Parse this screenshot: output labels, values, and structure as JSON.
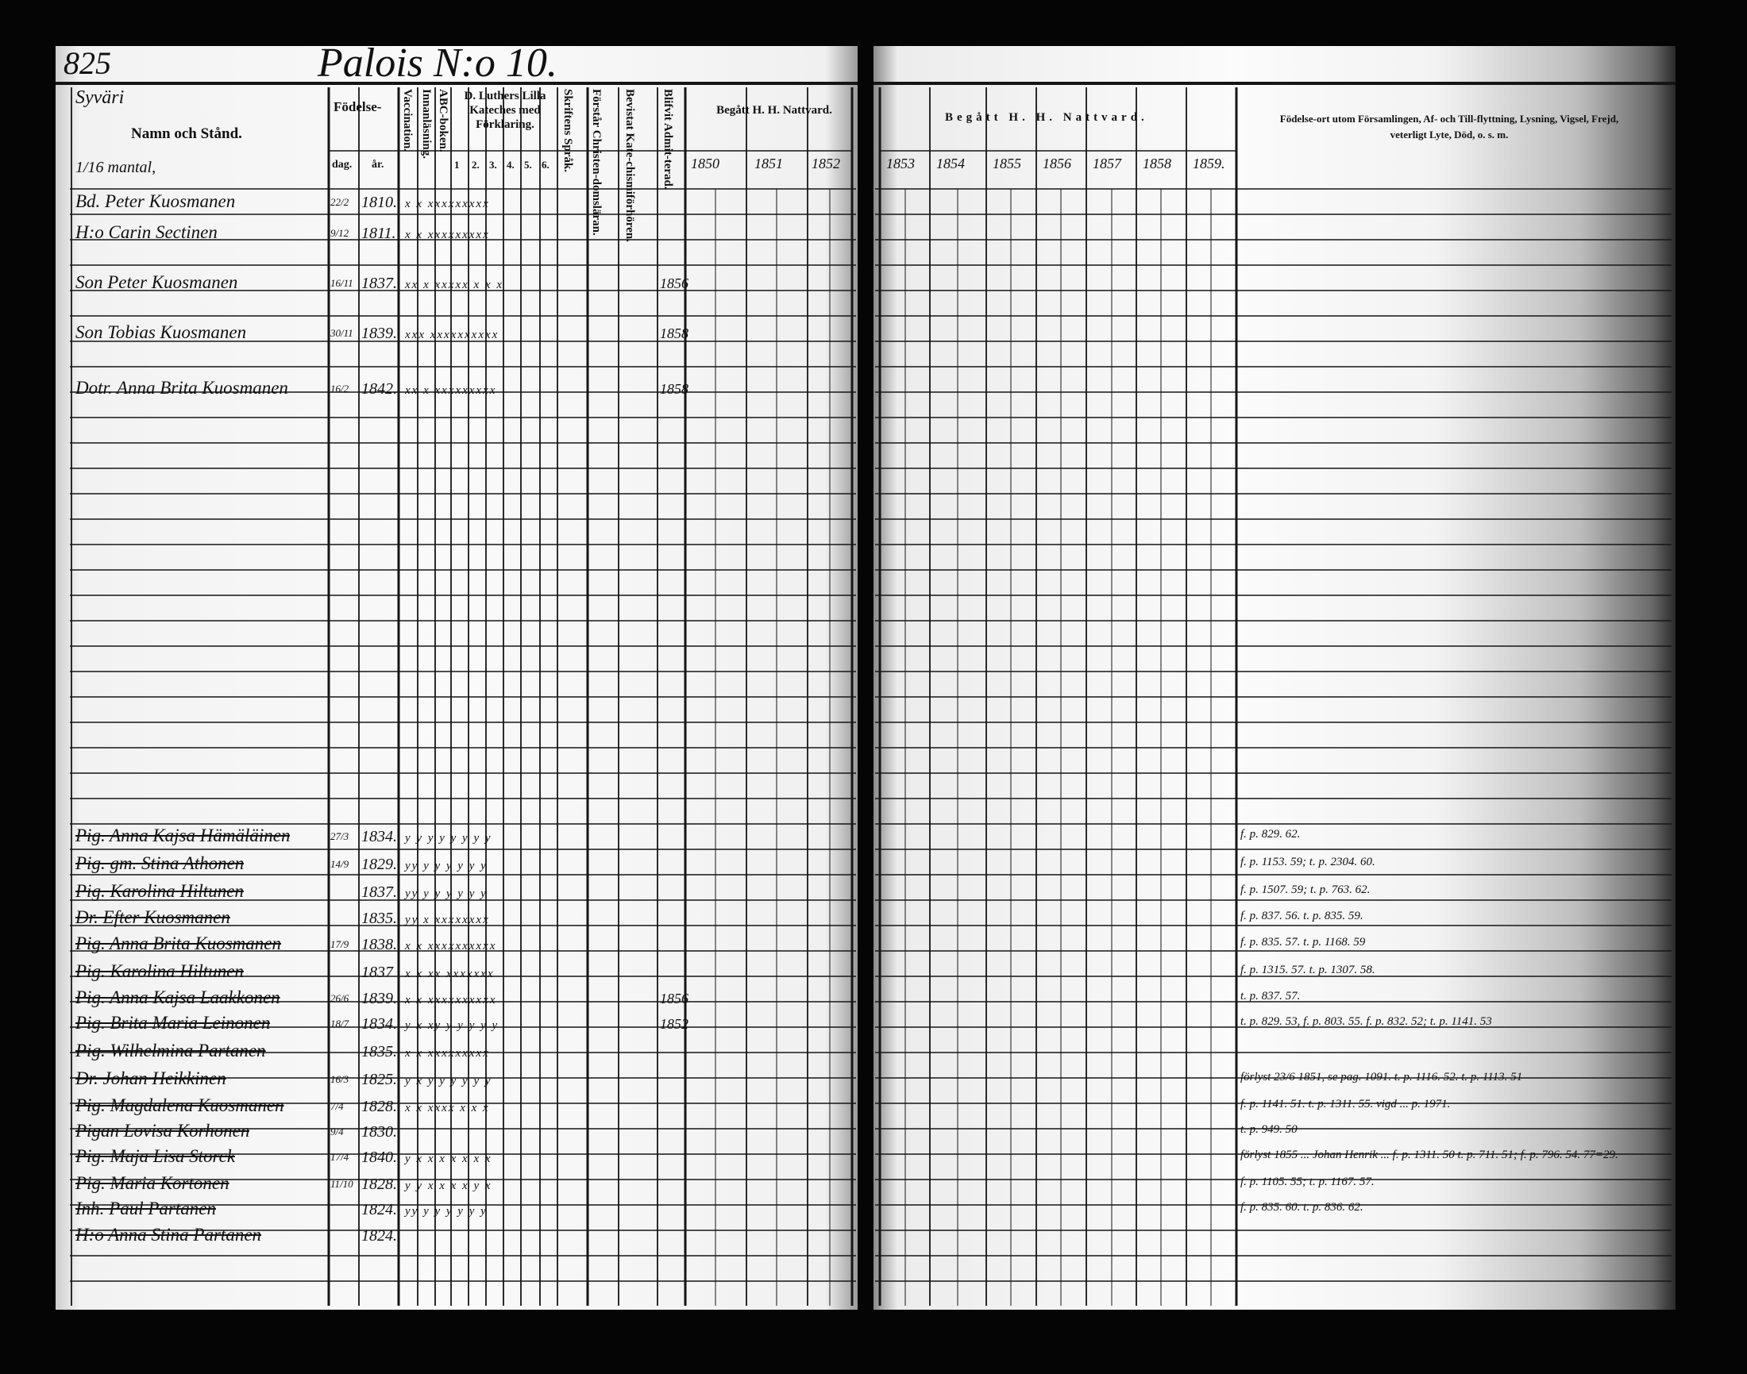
{
  "page_number": "825",
  "title": "Palois N:o 10.",
  "header": {
    "village": "Syväri",
    "mantal": "1/16 mantal,",
    "name_col": "Namn och Stånd.",
    "birth_col": "Födelse-",
    "birth_day": "dag.",
    "birth_year": "år.",
    "vaccination": "Vaccination.",
    "innanlasning": "Innanläsning.",
    "abc": "ABC-boken.",
    "luther": "D. Luthers Lilla Kateches med Förklaring.",
    "luther_parts": [
      "1",
      "2.",
      "3.",
      "4.",
      "5.",
      "6."
    ],
    "skrift": "Skriftens Språk.",
    "forstar": "Förstår Christen-domsläran.",
    "bevistat": "Bevistat Kate-chismiförhören.",
    "blifvit": "Blifvit Admit-terad.",
    "begatt_left": "Begått H. H. Nattvard.",
    "begatt_right": "Begått H. H. Nattvard.",
    "years_left": [
      "1850",
      "1851",
      "1852"
    ],
    "years_right": [
      "1853",
      "1854",
      "1855",
      "1856",
      "1857",
      "1858",
      "1859."
    ],
    "remarks_col": "Födelse-ort utom Församlingen, Af- och Till-flyttning, Lysning, Vigsel, Frejd, veterligt Lyte, Död, o. s. m."
  },
  "entries": [
    {
      "name": "Bd. Peter Kuosmanen",
      "dag": "22/2",
      "ar": "1810.",
      "marks": "x x xxxxxxxxx",
      "admitted": "",
      "struck": false
    },
    {
      "name": "H:o Carin Sectinen",
      "dag": "9/12",
      "ar": "1811.",
      "marks": "x x xxxxxxxxx",
      "admitted": "",
      "struck": false
    },
    {
      "name": "Son Peter Kuosmanen",
      "dag": "16/11",
      "ar": "1837.",
      "marks": "xx x xxxxx x x x",
      "admitted": "1856",
      "struck": false
    },
    {
      "name": "Son Tobias Kuosmanen",
      "dag": "30/11",
      "ar": "1839.",
      "marks": "xxx xxxxxxxxxx",
      "admitted": "1858",
      "struck": false
    },
    {
      "name": "Dotr. Anna Brita Kuosmanen",
      "dag": "16/2",
      "ar": "1842.",
      "marks": "xx x xxxxxxxxx",
      "admitted": "1858",
      "struck": false
    },
    {
      "name": "Pig. Anna Kajsa Hämäläinen",
      "dag": "27/3",
      "ar": "1834.",
      "marks": "y y y y y y y y",
      "admitted": "",
      "struck": true,
      "remark": "f. p. 829. 62."
    },
    {
      "name": "Pig. gm. Stina Athonen",
      "dag": "14/9",
      "ar": "1829.",
      "marks": "yy y y y y y y",
      "admitted": "",
      "struck": true,
      "remark": "f. p. 1153. 59; t. p. 2304. 60."
    },
    {
      "name": "Pig. Karolina Hiltunen",
      "dag": "",
      "ar": "1837.",
      "marks": "yy y y y y y y",
      "admitted": "",
      "struck": true,
      "remark": "f. p. 1507. 59; t. p. 763. 62."
    },
    {
      "name": "Dr. Efter Kuosmanen",
      "dag": "",
      "ar": "1835.",
      "marks": "yy x xxxxxxxx",
      "admitted": "",
      "struck": true,
      "remark": "f. p. 837. 56. t. p. 835. 59."
    },
    {
      "name": "Pig. Anna Brita Kuosmanen",
      "dag": "17/9",
      "ar": "1838.",
      "marks": "x x xxxxxxxxxx",
      "admitted": "",
      "struck": true,
      "remark": "f. p. 835. 57. t. p. 1168. 59"
    },
    {
      "name": "Pig. Karolina Hiltunen",
      "dag": "",
      "ar": "1837",
      "marks": "x x xx xxxxxxx",
      "admitted": "",
      "struck": true,
      "remark": "f. p. 1315. 57. t. p. 1307. 58."
    },
    {
      "name": "Pig. Anna Kajsa Laakkonen",
      "dag": "26/6",
      "ar": "1839.",
      "marks": "x x xxxxxxxxxx",
      "admitted": "1856",
      "struck": true,
      "remark": "t. p. 837. 57."
    },
    {
      "name": "Pig. Brita Maria Leinonen",
      "dag": "18/7",
      "ar": "1834.",
      "marks": "y x xy y y y y y",
      "admitted": "1852",
      "struck": true,
      "remark": "t. p. 829. 53, f. p. 803. 55. f. p. 832. 52; t. p. 1141. 53"
    },
    {
      "name": "Pig. Wilhelmina Partanen",
      "dag": "",
      "ar": "1835.",
      "marks": "x x xxxxxxxxx",
      "admitted": "",
      "struck": true,
      "remark": ""
    },
    {
      "name": "Dr. Johan Heikkinen",
      "dag": "16/3",
      "ar": "1825.",
      "marks": "y x y y y y y y",
      "admitted": "",
      "struck": true,
      "remark": "förlyst 23/6 1851, se pag. 1091. t. p. 1116. 52. t. p. 1113. 51"
    },
    {
      "name": "Pig. Magdalena Kuosmanen",
      "dag": "7/4",
      "ar": "1828.",
      "marks": "x x xxxx x x x",
      "admitted": "",
      "struck": true,
      "remark": "f. p. 1141. 51. t. p. 1311. 55. vigd ... p. 1971."
    },
    {
      "name": "Pigan Lovisa Korhonen",
      "dag": "9/4",
      "ar": "1830.",
      "marks": "",
      "admitted": "",
      "struck": true,
      "remark": "t. p. 949. 50"
    },
    {
      "name": "Pig. Maja Lisa Storck",
      "dag": "17/4",
      "ar": "1840.",
      "marks": "y x x x x x x x",
      "admitted": "",
      "struck": true,
      "remark": "förlyst 1855 ... Johan Henrik ... f. p. 1311. 50 t. p. 711. 51; f. p. 796. 54. 77=29."
    },
    {
      "name": "Pig. Maria Kortonen",
      "dag": "11/10",
      "ar": "1828.",
      "marks": "y y x x x x y x",
      "admitted": "",
      "struck": true,
      "remark": "f. p. 1105. 55; t. p. 1167. 57."
    },
    {
      "name": "Inh. Paul Partanen",
      "dag": "",
      "ar": "1824.",
      "marks": "yy y y y y y y",
      "admitted": "",
      "struck": true,
      "remark": "f. p. 835. 60. t. p. 836. 62."
    },
    {
      "name": "H:o Anna Stina Partanen",
      "dag": "",
      "ar": "1824.",
      "marks": "",
      "admitted": "",
      "struck": true,
      "remark": ""
    }
  ]
}
